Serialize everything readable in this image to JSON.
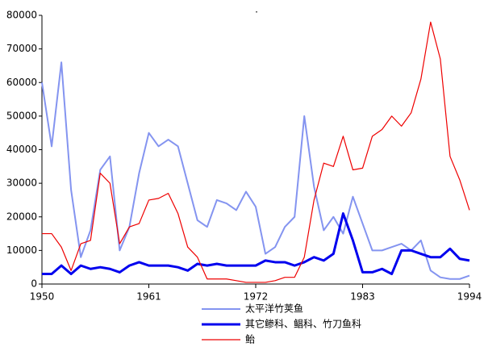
{
  "chart_data": {
    "type": "line",
    "title": ".",
    "x": [
      1950,
      1951,
      1952,
      1953,
      1954,
      1955,
      1956,
      1957,
      1958,
      1959,
      1960,
      1961,
      1962,
      1963,
      1964,
      1965,
      1966,
      1967,
      1968,
      1969,
      1970,
      1971,
      1972,
      1973,
      1974,
      1975,
      1976,
      1977,
      1978,
      1979,
      1980,
      1981,
      1982,
      1983,
      1984,
      1985,
      1986,
      1987,
      1988,
      1989,
      1990,
      1991,
      1992,
      1993,
      1994
    ],
    "series": [
      {
        "name": "太平洋竹荚鱼",
        "color": "#8494f0",
        "width": 2,
        "values": [
          60000,
          41000,
          66000,
          28000,
          8000,
          16000,
          34000,
          38000,
          10000,
          17000,
          33000,
          45000,
          41000,
          43000,
          41000,
          30000,
          19000,
          17000,
          25000,
          24000,
          22000,
          27500,
          23000,
          9000,
          11000,
          17000,
          20000,
          50000,
          29000,
          16000,
          20000,
          15000,
          26000,
          18000,
          10000,
          10000,
          11000,
          12000,
          10000,
          13000,
          4000,
          2000,
          1500,
          1500,
          2500
        ]
      },
      {
        "name": "其它鲹科、鲳科、竹刀鱼科",
        "color": "#0000ee",
        "width": 3,
        "values": [
          3000,
          3000,
          5500,
          3000,
          5500,
          4500,
          5000,
          4500,
          3500,
          5500,
          6500,
          5500,
          5500,
          5500,
          5000,
          4000,
          6000,
          5500,
          6000,
          5500,
          5500,
          5500,
          5500,
          7000,
          6500,
          6500,
          5500,
          6500,
          8000,
          7000,
          9000,
          21000,
          13000,
          3500,
          3500,
          4500,
          3000,
          10000,
          10000,
          9000,
          8000,
          8000,
          10500,
          7500,
          7000
        ]
      },
      {
        "name": "鲐",
        "color": "#ee0000",
        "width": 1.2,
        "values": [
          15000,
          15000,
          11000,
          4000,
          12000,
          13000,
          33000,
          30000,
          12000,
          17000,
          18000,
          25000,
          25500,
          27000,
          21000,
          11000,
          8000,
          1500,
          1500,
          1500,
          1000,
          500,
          500,
          500,
          1000,
          2000,
          2000,
          8000,
          25000,
          36000,
          35000,
          44000,
          34000,
          34500,
          44000,
          46000,
          50000,
          47000,
          51000,
          61000,
          78000,
          67000,
          38000,
          31000,
          22000
        ]
      }
    ],
    "xlim": [
      1950,
      1994
    ],
    "xticks": [
      1950,
      1961,
      1972,
      1983,
      1994
    ],
    "ylim": [
      0,
      80000
    ],
    "yticks": [
      0,
      10000,
      20000,
      30000,
      40000,
      50000,
      60000,
      70000,
      80000
    ]
  }
}
